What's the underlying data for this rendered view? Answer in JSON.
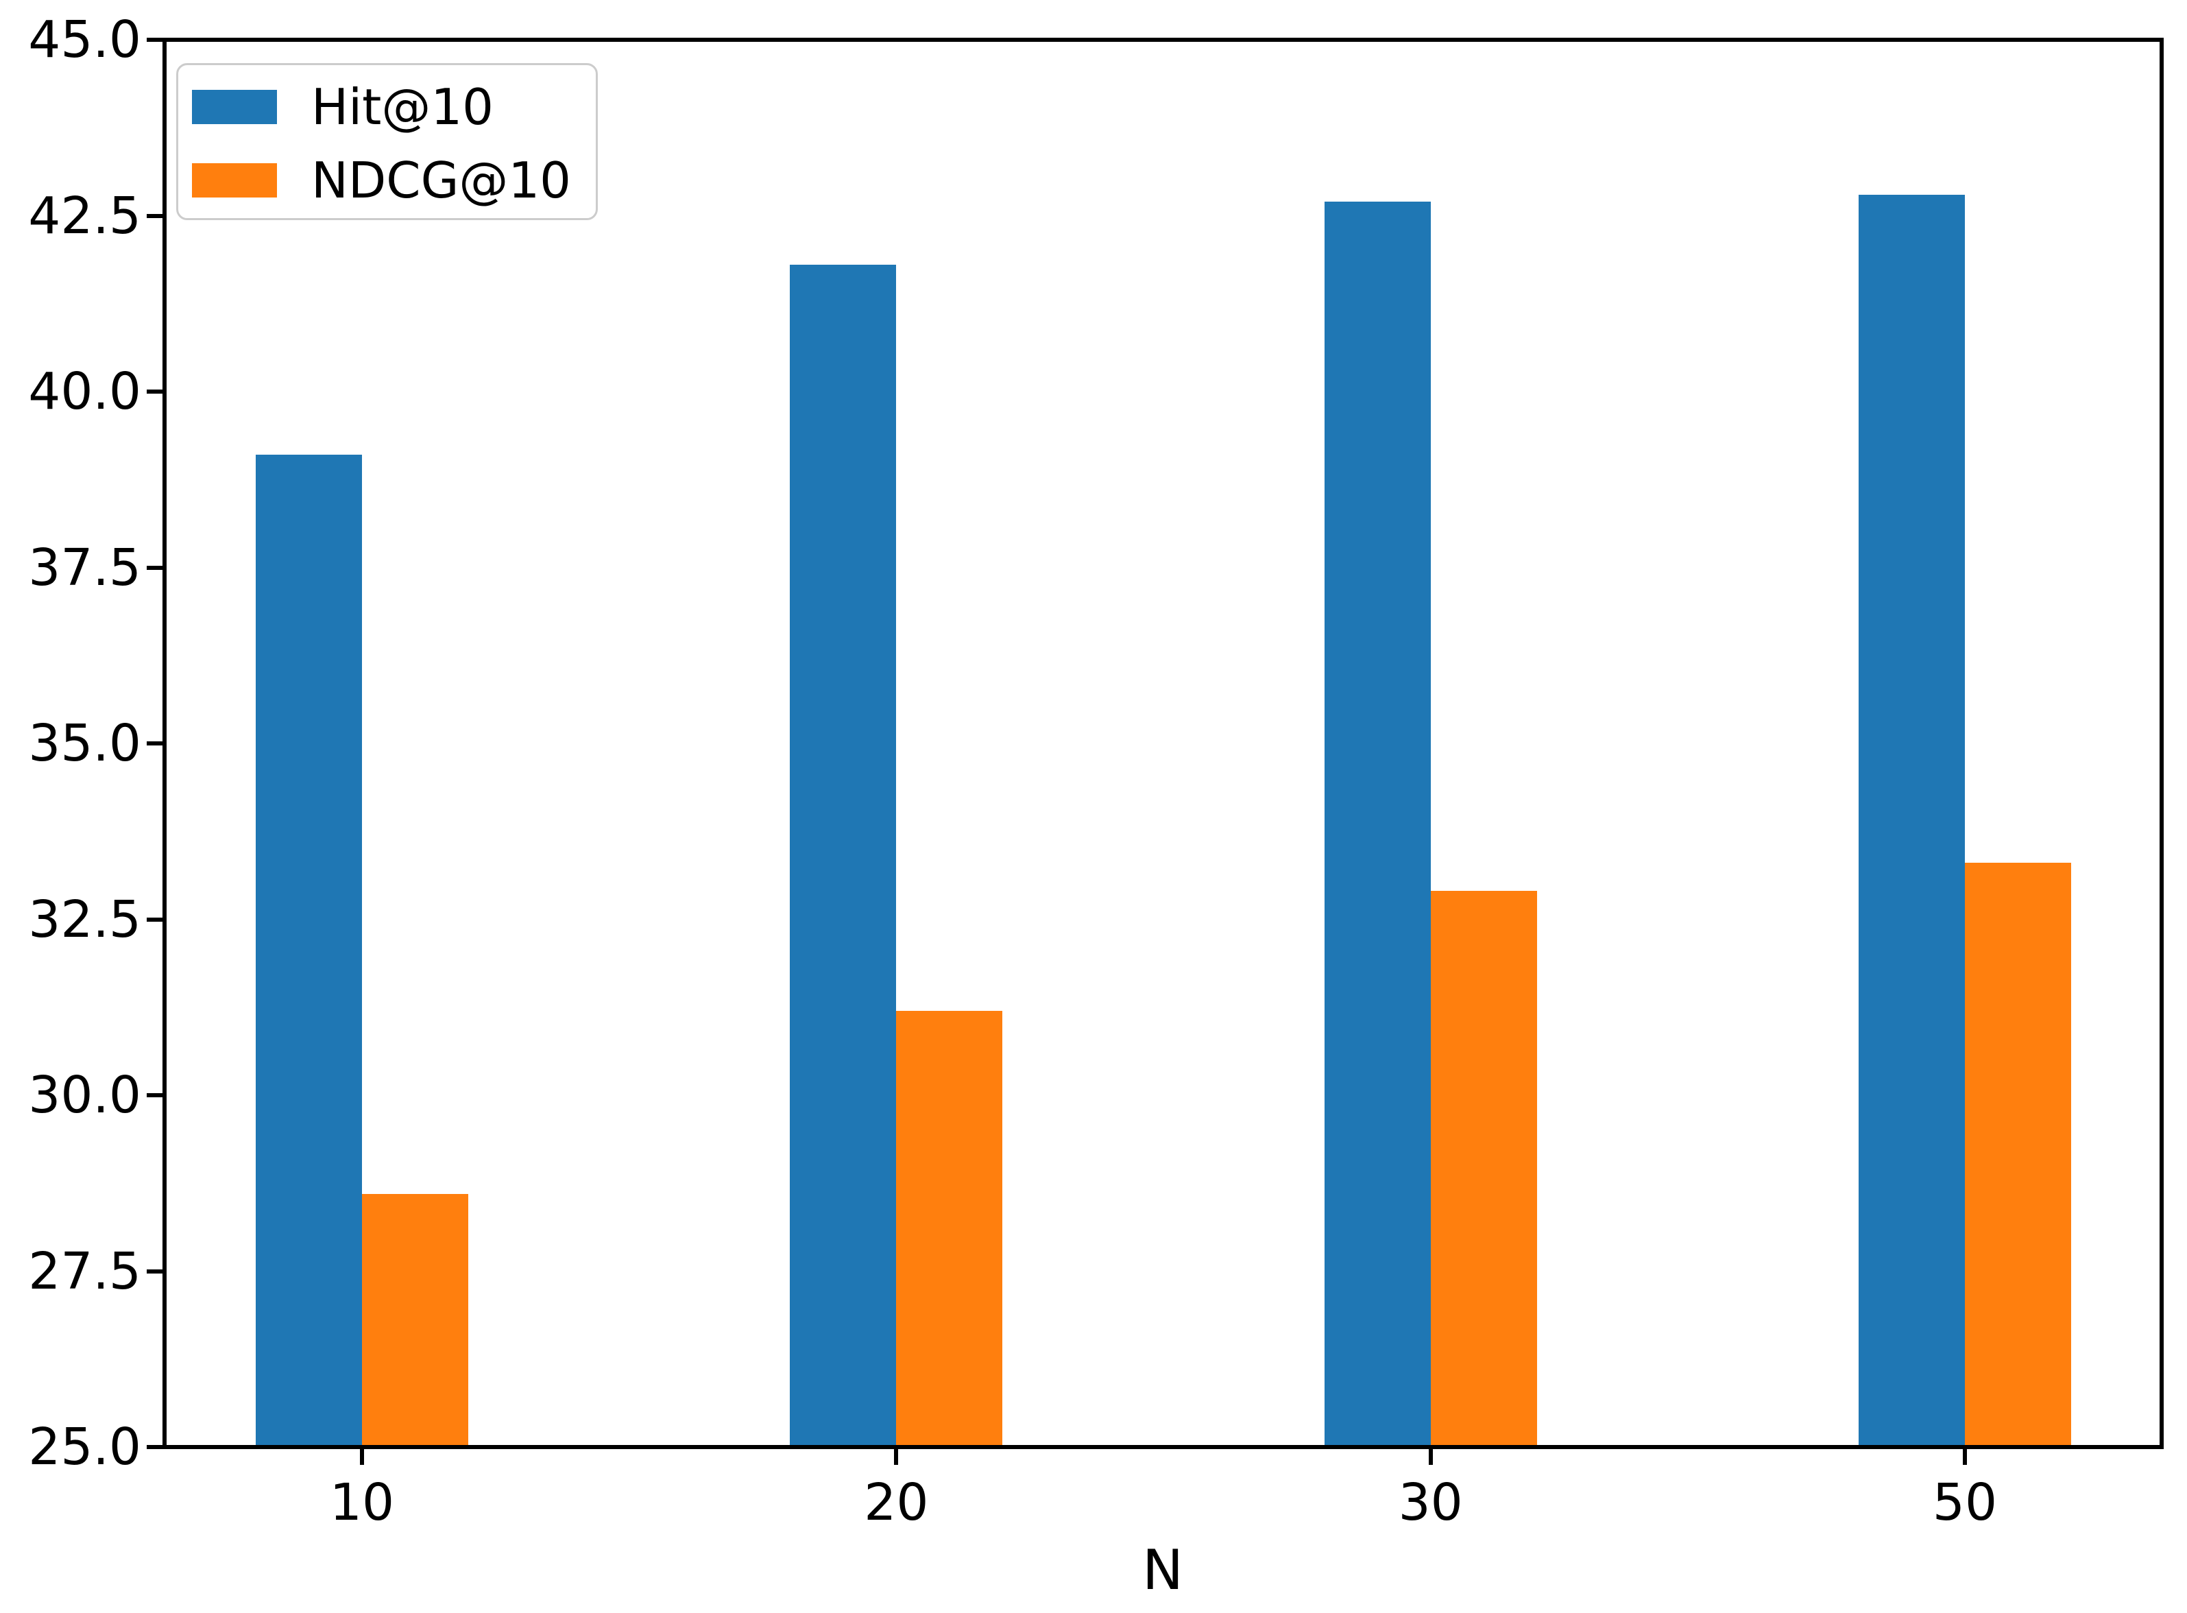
{
  "figure": {
    "background": "#ffffff"
  },
  "chart_data": {
    "type": "bar",
    "title": "",
    "xlabel": "N",
    "ylabel": "",
    "categories": [
      "10",
      "20",
      "30",
      "50"
    ],
    "series": [
      {
        "name": "Hit@10",
        "color": "#1f77b4",
        "values": [
          39.1,
          41.8,
          42.7,
          42.8
        ]
      },
      {
        "name": "NDCG@10",
        "color": "#ff7f0e",
        "values": [
          28.6,
          31.2,
          32.9,
          33.3
        ]
      }
    ],
    "ylim": [
      25.0,
      45.0
    ],
    "ytick_step": 2.5,
    "ytick_labels": [
      "25.0",
      "27.5",
      "30.0",
      "32.5",
      "35.0",
      "37.5",
      "40.0",
      "42.5",
      "45.0"
    ],
    "grid": false,
    "legend": {
      "position": "upper left",
      "entries": [
        "Hit@10",
        "NDCG@10"
      ]
    }
  },
  "colors": {
    "spine": "#000000",
    "text": "#000000",
    "legend_border": "#cccccc",
    "legend_background": "#ffffff"
  }
}
